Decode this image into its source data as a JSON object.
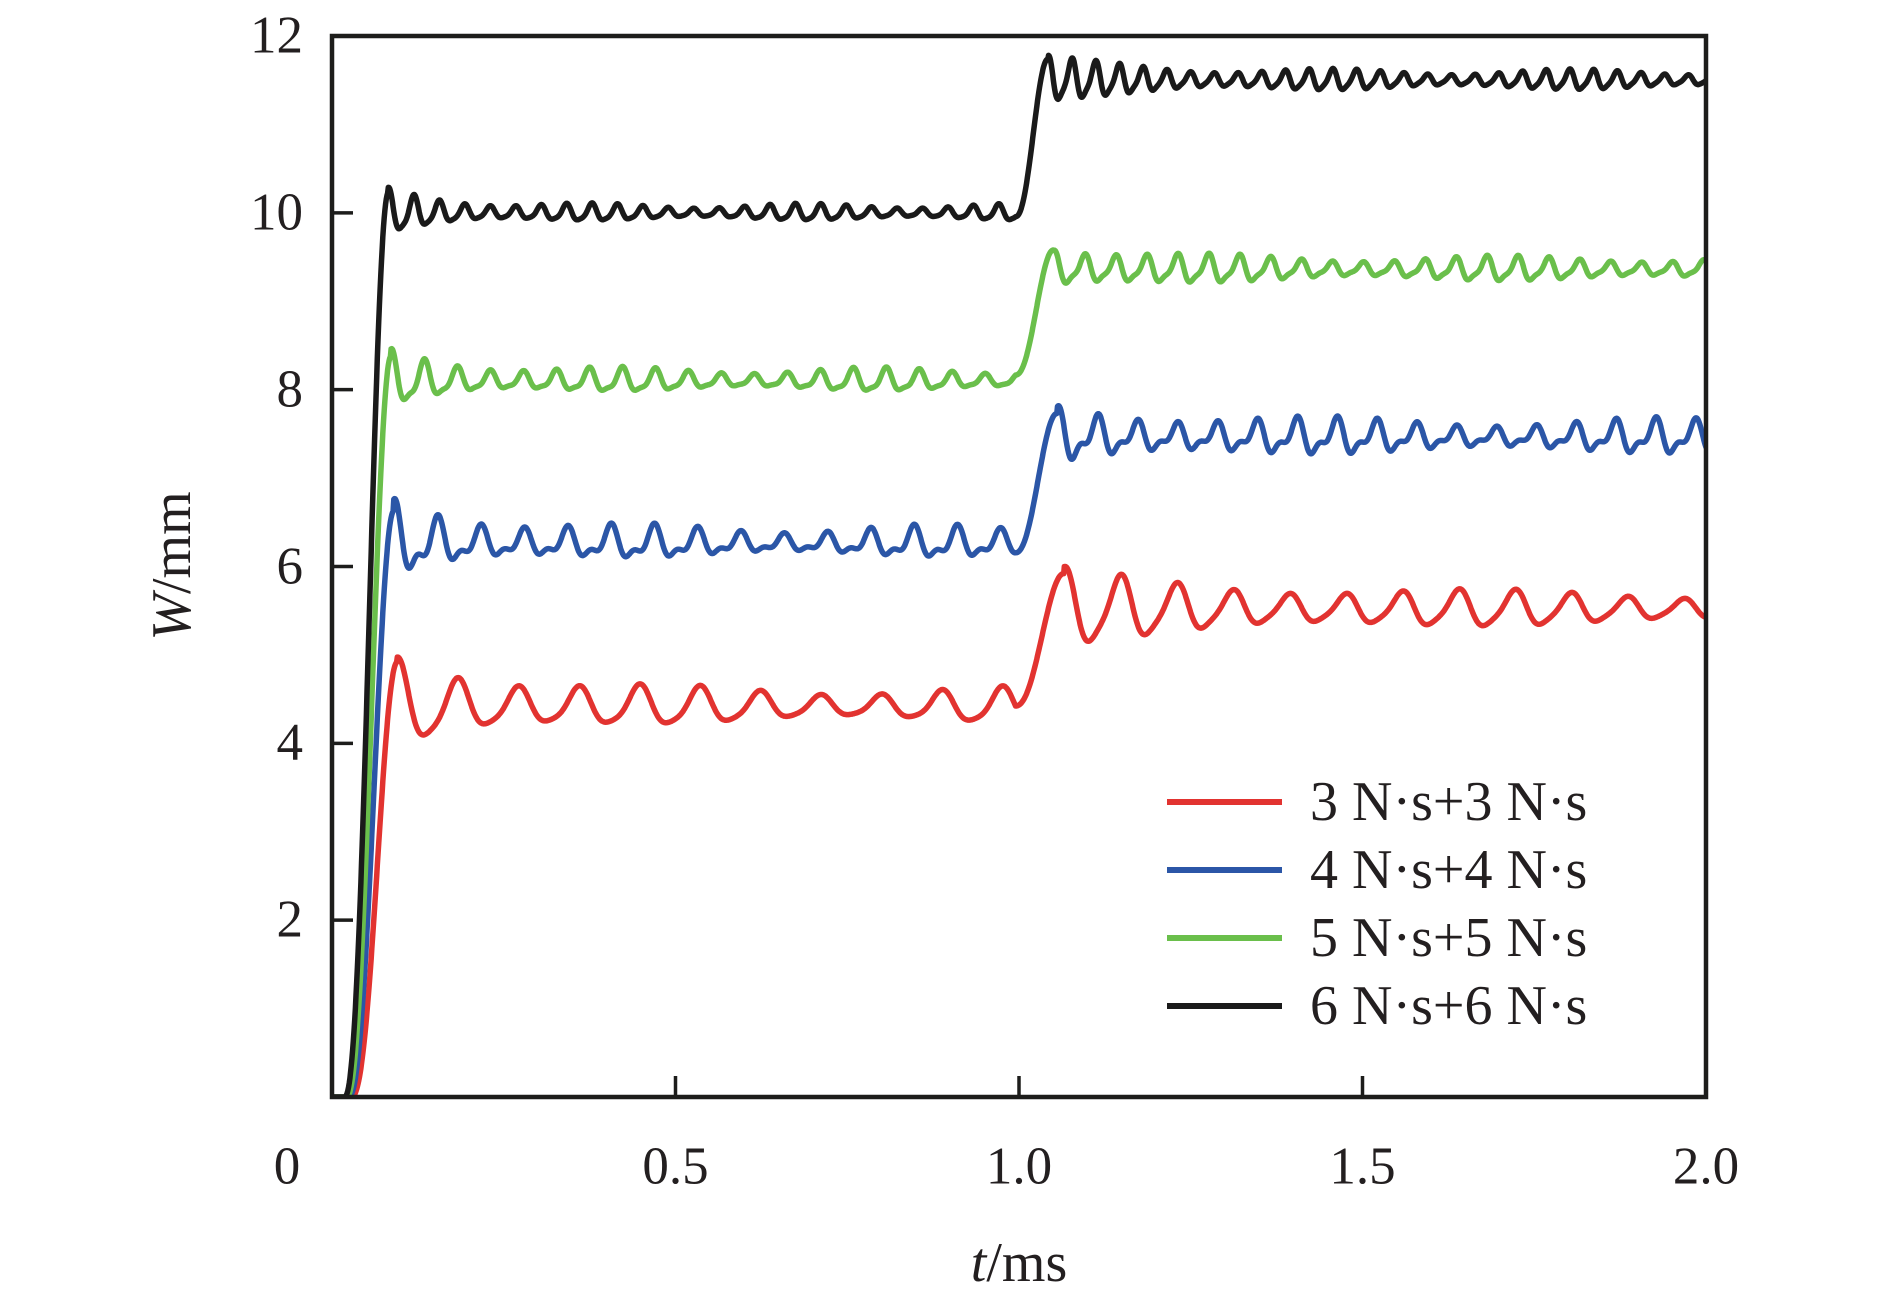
{
  "figure": {
    "background": "#ffffff",
    "frame_color": "#1d1d1b",
    "text_color": "#231f20"
  },
  "chart_data": {
    "type": "line",
    "title": "",
    "xlabel": {
      "variable": "t",
      "unit": "/ms"
    },
    "ylabel": {
      "variable": "W",
      "unit": "/mm"
    },
    "xlim": [
      0,
      2
    ],
    "ylim": [
      0,
      12
    ],
    "x_ticks": {
      "values": [
        0,
        0.5,
        1,
        1.5,
        2
      ],
      "labels": [
        "0",
        "0.5",
        "1.0",
        "1.5",
        "2.0"
      ]
    },
    "y_ticks": {
      "values": [
        2,
        4,
        6,
        8,
        10,
        12
      ],
      "labels": [
        "2",
        "4",
        "6",
        "8",
        "10",
        "12"
      ]
    },
    "grid": false,
    "legend_position": "lower-right",
    "series": [
      {
        "name": "3 N·s+3 N·s",
        "color": "#e23330",
        "first_plateau_mm": 4.42,
        "first_overshoot_mm": 4.92,
        "second_plateau_mm": 5.52,
        "second_overshoot_mm": 5.92,
        "second_impulse_at_ms": 1.0,
        "synth": {
          "rise_start": 0.028,
          "first_peak_t": 0.095,
          "period1": 0.088,
          "amp1_ss": 0.16,
          "decay1": 0.13,
          "step_start": 0.995,
          "second_peak_t": 1.065,
          "period2": 0.082,
          "amp2_ss": 0.15,
          "decay2": 0.22,
          "harmonic": 0.18,
          "mod": 0.3,
          "mod_period": 0.52,
          "phase_seed": 2.0
        }
      },
      {
        "name": "4 N·s+4 N·s",
        "color": "#2b56a7",
        "first_plateau_mm": 6.26,
        "first_overshoot_mm": 6.63,
        "second_plateau_mm": 7.46,
        "second_overshoot_mm": 7.73,
        "second_impulse_at_ms": 1.0,
        "synth": {
          "rise_start": 0.024,
          "first_peak_t": 0.09,
          "period1": 0.063,
          "amp1_ss": 0.13,
          "decay1": 0.11,
          "step_start": 0.995,
          "second_peak_t": 1.055,
          "period2": 0.058,
          "amp2_ss": 0.14,
          "decay2": 0.15,
          "harmonic": 0.5,
          "mod": 0.3,
          "mod_period": 0.43,
          "phase_seed": 1.3
        }
      },
      {
        "name": "5 N·s+5 N·s",
        "color": "#6abf4b",
        "first_plateau_mm": 8.1,
        "first_overshoot_mm": 8.38,
        "second_plateau_mm": 9.36,
        "second_overshoot_mm": 9.58,
        "second_impulse_at_ms": 1.0,
        "synth": {
          "rise_start": 0.021,
          "first_peak_t": 0.086,
          "period1": 0.048,
          "amp1_ss": 0.1,
          "decay1": 0.09,
          "step_start": 0.995,
          "second_peak_t": 1.05,
          "period2": 0.045,
          "amp2_ss": 0.105,
          "decay2": 0.13,
          "harmonic": 0.3,
          "mod": 0.32,
          "mod_period": 0.37,
          "phase_seed": 0.7
        }
      },
      {
        "name": "6 N·s+6 N·s",
        "color": "#1a1a1a",
        "first_plateau_mm": 10.0,
        "first_overshoot_mm": 10.23,
        "second_plateau_mm": 11.5,
        "second_overshoot_mm": 11.74,
        "second_impulse_at_ms": 1.0,
        "synth": {
          "rise_start": 0.018,
          "first_peak_t": 0.082,
          "period1": 0.037,
          "amp1_ss": 0.07,
          "decay1": 0.08,
          "step_start": 0.995,
          "second_peak_t": 1.042,
          "period2": 0.0345,
          "amp2_ss": 0.085,
          "decay2": 0.12,
          "harmonic": 0.22,
          "mod": 0.35,
          "mod_period": 0.31,
          "phase_seed": 0.2
        }
      }
    ]
  }
}
